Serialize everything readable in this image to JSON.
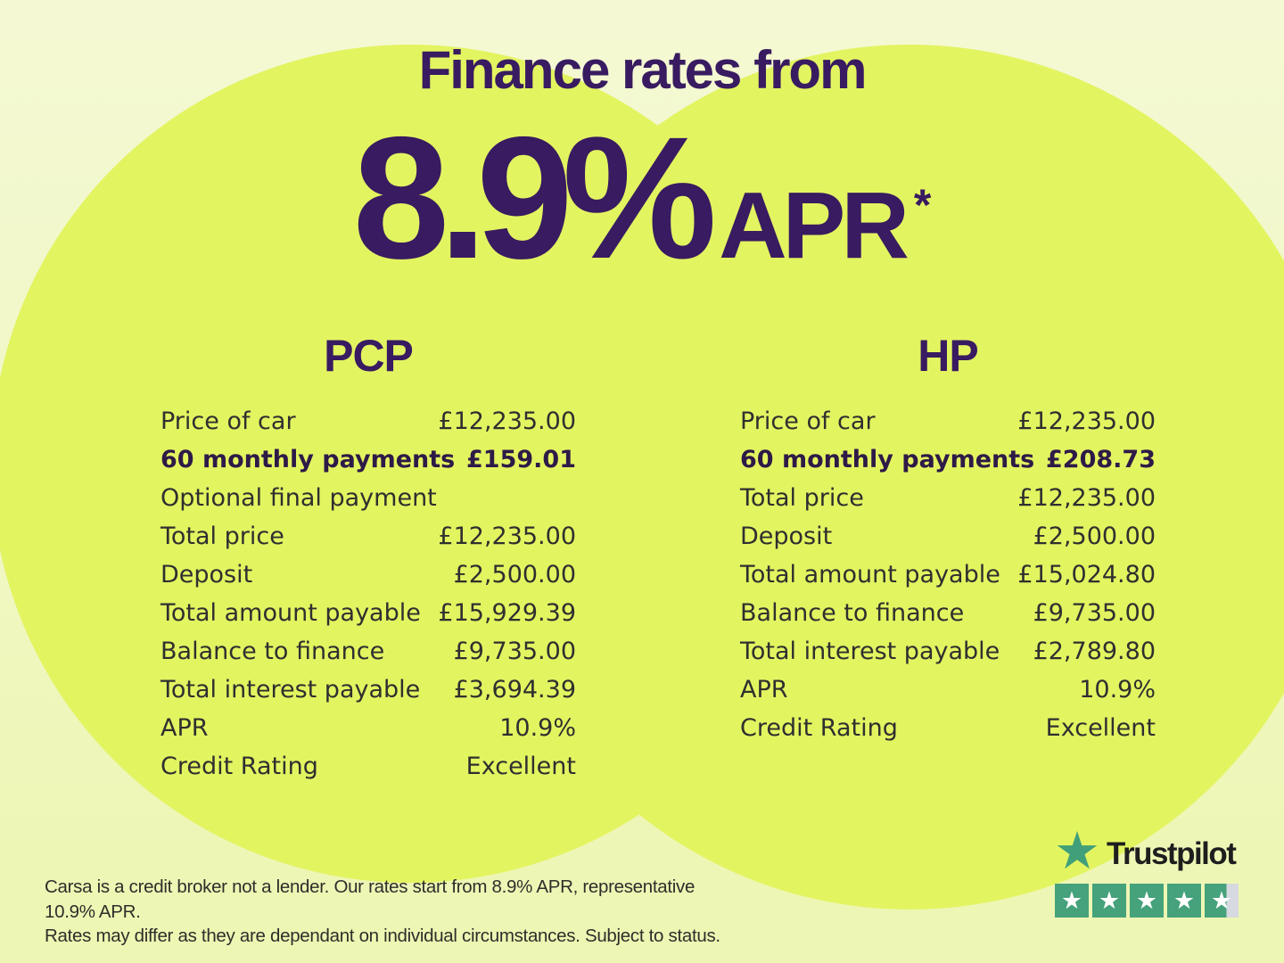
{
  "page": {
    "title": "Finance rates from",
    "hero_rate": "8.9%",
    "hero_suffix": "APR",
    "hero_asterisk": "*"
  },
  "colors": {
    "background_pale": "#f1f8c8",
    "circle_green": "#e3f461",
    "heading_purple": "#381b60",
    "table_text": "#2f2f2f",
    "table_bold_text": "#2e1a47",
    "trustpilot_green": "#45a27b",
    "star_empty_gray": "#d6d9e0"
  },
  "pcp": {
    "heading": "PCP",
    "rows": [
      {
        "label": "Price of car",
        "value": "£12,235.00"
      },
      {
        "label": "60 monthly payments",
        "value": "£159.01"
      },
      {
        "label": "Optional final payment",
        "value": ""
      },
      {
        "label": "Total price",
        "value": "£12,235.00"
      },
      {
        "label": "Deposit",
        "value": "£2,500.00"
      },
      {
        "label": "Total amount payable",
        "value": "£15,929.39"
      },
      {
        "label": "Balance to finance",
        "value": "£9,735.00"
      },
      {
        "label": "Total interest payable",
        "value": "£3,694.39"
      },
      {
        "label": "APR",
        "value": "10.9%"
      },
      {
        "label": "Credit Rating",
        "value": "Excellent"
      }
    ]
  },
  "hp": {
    "heading": "HP",
    "rows": [
      {
        "label": "Price of car",
        "value": "£12,235.00"
      },
      {
        "label": "60 monthly payments",
        "value": "£208.73"
      },
      {
        "label": "Total price",
        "value": "£12,235.00"
      },
      {
        "label": "Deposit",
        "value": "£2,500.00"
      },
      {
        "label": "Total amount payable",
        "value": "£15,024.80"
      },
      {
        "label": "Balance to finance",
        "value": "£9,735.00"
      },
      {
        "label": "Total interest payable",
        "value": "£2,789.80"
      },
      {
        "label": "APR",
        "value": "10.9%"
      },
      {
        "label": "Credit Rating",
        "value": "Excellent"
      }
    ]
  },
  "trustpilot": {
    "brand": "Trustpilot",
    "logo_star": "★",
    "rating_star_glyph": "★",
    "stars_total": 5,
    "stars_full": 4,
    "last_star_fill_percent": 64
  },
  "disclaimer": {
    "line1": "Carsa is a credit broker not a lender. Our rates start from 8.9% APR, representative 10.9% APR.",
    "line2": "Rates may differ as they are dependant on individual circumstances. Subject to status."
  }
}
